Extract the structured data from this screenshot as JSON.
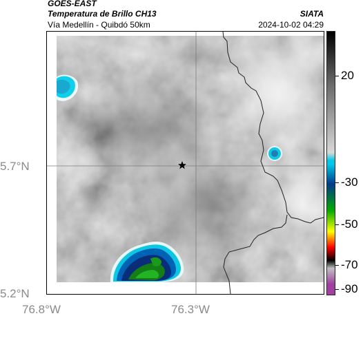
{
  "header": {
    "satellite": "GOES-EAST",
    "product": "Temperatura de Brillo CH13",
    "region": "Vía Medellín - Quibdó 50km",
    "agency": "SIATA",
    "timestamp": "2024-10-02 04:29"
  },
  "map": {
    "lat_labels": [
      "5.7°N",
      "5.2°N"
    ],
    "lon_labels": [
      "76.8°W",
      "76.3°W"
    ],
    "marker_icon": "star-icon"
  },
  "colorbar": {
    "tick_labels": [
      "20",
      "-30",
      "-50",
      "-70",
      "-90"
    ],
    "colors": [
      "#000000",
      "#6a6a6a",
      "#d8d8d8",
      "#00c8e8",
      "#003a8a",
      "#00aa00",
      "#ffff00",
      "#ff0000",
      "#000000",
      "#c0c0c0",
      "#a040a0"
    ]
  }
}
